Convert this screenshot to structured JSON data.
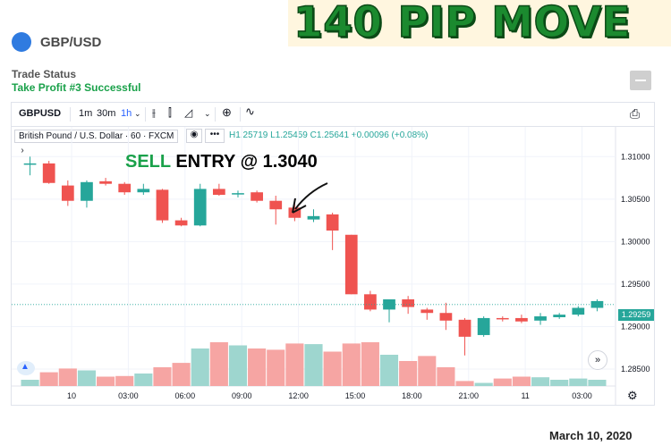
{
  "headline": "140 PIP MOVE",
  "symbol": {
    "title": "GBP/USD",
    "dot_color": "#2f7be0"
  },
  "trade_status": {
    "label": "Trade Status",
    "value": "Take Profit #3 Successful"
  },
  "toolbar": {
    "symbol": "GBPUSD",
    "intervals": [
      "1m",
      "30m",
      "1h"
    ],
    "active_interval": "1h",
    "chart_style_icons": [
      "bars-icon",
      "candles-icon",
      "area-icon"
    ],
    "compare_icon": "plus-circle-icon",
    "indicators_icon": "indicators-icon",
    "snapshot_icon": "camera-icon"
  },
  "legend": {
    "title": "British Pound / U.S. Dollar · 60 · FXCM",
    "ohlc": "H1.25719  L1.25459  C1.25641  +0.00096 (+0.08%)"
  },
  "annotation": {
    "sell": "SELL",
    "rest": "ENTRY @  1.3040"
  },
  "price_tag": "1.29259",
  "footer_date": "March 10, 2020",
  "colors": {
    "up": "#26a69a",
    "down": "#ef5350",
    "up_vol": "#9ed6cf",
    "down_vol": "#f6a5a3"
  },
  "chart_data": {
    "type": "candlestick",
    "symbol": "GBPUSD",
    "y_ticks": [
      "1.31000",
      "1.30500",
      "1.30000",
      "1.29500",
      "1.29000",
      "1.28500"
    ],
    "ylim": [
      1.283,
      1.3135
    ],
    "x_ticks": [
      "10",
      "03:00",
      "06:00",
      "09:00",
      "12:00",
      "15:00",
      "18:00",
      "21:00",
      "11",
      "03:00"
    ],
    "candles": [
      {
        "o": 1.3092,
        "h": 1.31,
        "l": 1.3078,
        "c": 1.3092,
        "v": 0.1
      },
      {
        "o": 1.3092,
        "h": 1.3095,
        "l": 1.3068,
        "c": 1.3069,
        "v": 0.22
      },
      {
        "o": 1.3066,
        "h": 1.3072,
        "l": 1.3042,
        "c": 1.3048,
        "v": 0.28
      },
      {
        "o": 1.3048,
        "h": 1.3072,
        "l": 1.304,
        "c": 1.307,
        "v": 0.25
      },
      {
        "o": 1.3071,
        "h": 1.3075,
        "l": 1.3066,
        "c": 1.3068,
        "v": 0.15
      },
      {
        "o": 1.3068,
        "h": 1.307,
        "l": 1.3055,
        "c": 1.3058,
        "v": 0.16
      },
      {
        "o": 1.3058,
        "h": 1.3068,
        "l": 1.3055,
        "c": 1.3062,
        "v": 0.2
      },
      {
        "o": 1.3061,
        "h": 1.3062,
        "l": 1.3022,
        "c": 1.3025,
        "v": 0.3
      },
      {
        "o": 1.3025,
        "h": 1.3028,
        "l": 1.3018,
        "c": 1.3019,
        "v": 0.37
      },
      {
        "o": 1.3019,
        "h": 1.3068,
        "l": 1.3018,
        "c": 1.3062,
        "v": 0.6
      },
      {
        "o": 1.3062,
        "h": 1.3068,
        "l": 1.3054,
        "c": 1.3055,
        "v": 0.7
      },
      {
        "o": 1.3057,
        "h": 1.306,
        "l": 1.3052,
        "c": 1.3057,
        "v": 0.65
      },
      {
        "o": 1.3058,
        "h": 1.306,
        "l": 1.3046,
        "c": 1.3048,
        "v": 0.6
      },
      {
        "o": 1.3048,
        "h": 1.3054,
        "l": 1.302,
        "c": 1.3038,
        "v": 0.58
      },
      {
        "o": 1.304,
        "h": 1.305,
        "l": 1.3024,
        "c": 1.3028,
        "v": 0.68
      },
      {
        "o": 1.3026,
        "h": 1.3038,
        "l": 1.3023,
        "c": 1.303,
        "v": 0.67
      },
      {
        "o": 1.3032,
        "h": 1.3034,
        "l": 1.299,
        "c": 1.3013,
        "v": 0.55
      },
      {
        "o": 1.3008,
        "h": 1.3008,
        "l": 1.2938,
        "c": 1.2938,
        "v": 0.68
      },
      {
        "o": 1.2938,
        "h": 1.2942,
        "l": 1.2918,
        "c": 1.292,
        "v": 0.7
      },
      {
        "o": 1.292,
        "h": 1.293,
        "l": 1.2905,
        "c": 1.2932,
        "v": 0.5
      },
      {
        "o": 1.2932,
        "h": 1.2936,
        "l": 1.2915,
        "c": 1.2923,
        "v": 0.4
      },
      {
        "o": 1.292,
        "h": 1.2922,
        "l": 1.2908,
        "c": 1.2916,
        "v": 0.48
      },
      {
        "o": 1.2916,
        "h": 1.2928,
        "l": 1.2896,
        "c": 1.2907,
        "v": 0.3
      },
      {
        "o": 1.2908,
        "h": 1.291,
        "l": 1.2866,
        "c": 1.2888,
        "v": 0.08
      },
      {
        "o": 1.289,
        "h": 1.2912,
        "l": 1.2888,
        "c": 1.291,
        "v": 0.05
      },
      {
        "o": 1.291,
        "h": 1.2912,
        "l": 1.2906,
        "c": 1.2909,
        "v": 0.12
      },
      {
        "o": 1.291,
        "h": 1.2914,
        "l": 1.2904,
        "c": 1.2906,
        "v": 0.15
      },
      {
        "o": 1.2907,
        "h": 1.2916,
        "l": 1.2902,
        "c": 1.2912,
        "v": 0.14
      },
      {
        "o": 1.2911,
        "h": 1.2916,
        "l": 1.2909,
        "c": 1.2914,
        "v": 0.1
      },
      {
        "o": 1.2914,
        "h": 1.2924,
        "l": 1.2912,
        "c": 1.2922,
        "v": 0.12
      },
      {
        "o": 1.2922,
        "h": 1.2932,
        "l": 1.2918,
        "c": 1.293,
        "v": 0.1
      }
    ],
    "last_price": 1.29259,
    "grid": true
  }
}
